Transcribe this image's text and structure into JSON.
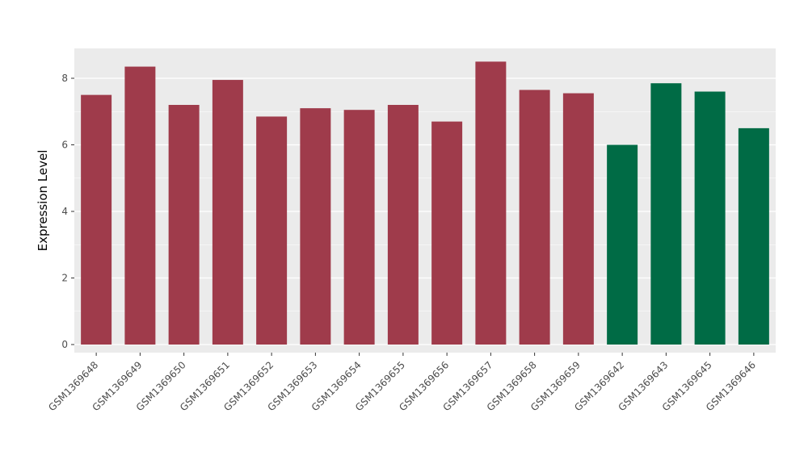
{
  "chart_data": {
    "type": "bar",
    "title": "",
    "xlabel": "",
    "ylabel": "Expression Level",
    "ylim": [
      0,
      8.92
    ],
    "yticks": [
      0,
      2,
      4,
      6,
      8
    ],
    "yticks_minor": [
      1,
      3,
      5,
      7
    ],
    "grid": true,
    "legend": "none",
    "categories": [
      "GSM1369648",
      "GSM1369649",
      "GSM1369650",
      "GSM1369651",
      "GSM1369652",
      "GSM1369653",
      "GSM1369654",
      "GSM1369655",
      "GSM1369656",
      "GSM1369657",
      "GSM1369658",
      "GSM1369659",
      "GSM1369642",
      "GSM1369643",
      "GSM1369645",
      "GSM1369646"
    ],
    "values": [
      7.5,
      8.35,
      7.2,
      7.95,
      6.85,
      7.1,
      7.05,
      7.2,
      6.7,
      8.5,
      7.65,
      7.55,
      6.0,
      7.85,
      7.6,
      6.5
    ],
    "bar_colors": [
      "#9F3B4B",
      "#9F3B4B",
      "#9F3B4B",
      "#9F3B4B",
      "#9F3B4B",
      "#9F3B4B",
      "#9F3B4B",
      "#9F3B4B",
      "#9F3B4B",
      "#9F3B4B",
      "#9F3B4B",
      "#9F3B4B",
      "#006B45",
      "#006B45",
      "#006B45",
      "#006B45"
    ],
    "palette": {
      "group_red": "#9F3B4B",
      "group_green": "#006B45",
      "panel_bg": "#EBEBEB",
      "grid_major": "#FFFFFF",
      "grid_minor": "#FFFFFF",
      "tick_text": "#4D4D4D",
      "axis_title_text": "#000000",
      "page_bg": "#FFFFFF"
    }
  }
}
